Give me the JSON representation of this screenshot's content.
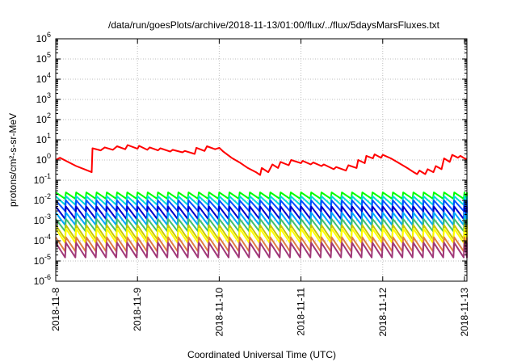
{
  "chart_data": {
    "type": "line",
    "title": "/data/run/goesPlots/archive/2018-11-13/01:00/flux/../flux/5daysMarsFluxes.txt",
    "xlabel": "Coordinated Universal Time (UTC)",
    "ylabel": "protons/cm²-s-sr-MeV",
    "yscale": "log",
    "ylim_exp": [
      -6,
      6
    ],
    "y_tick_exponents": [
      -6,
      -5,
      -4,
      -3,
      -2,
      -1,
      0,
      1,
      2,
      3,
      4,
      5,
      6
    ],
    "y_tick_base": "10",
    "x_range_days": [
      0,
      5.03
    ],
    "x_tick_labels": [
      "2018-11-8",
      "2018-11-9",
      "2018-11-10",
      "2018-11-11",
      "2018-11-12",
      "2018-11-13"
    ],
    "x_tick_days": [
      0,
      1,
      2,
      3,
      4,
      5
    ],
    "grid": true,
    "sawtooth_period_days": 0.125,
    "series": [
      {
        "color": "#ff0000",
        "values": [
          [
            0,
            1.0
          ],
          [
            0.05,
            1.3
          ],
          [
            0.15,
            0.8
          ],
          [
            0.25,
            0.5
          ],
          [
            0.35,
            0.35
          ],
          [
            0.44,
            0.25
          ],
          [
            0.45,
            3.8
          ],
          [
            0.55,
            3.0
          ],
          [
            0.6,
            4.2
          ],
          [
            0.7,
            3.2
          ],
          [
            0.75,
            4.8
          ],
          [
            0.85,
            3.4
          ],
          [
            0.88,
            5.5
          ],
          [
            1.0,
            3.6
          ],
          [
            1.02,
            5.0
          ],
          [
            1.12,
            3.2
          ],
          [
            1.15,
            4.2
          ],
          [
            1.25,
            3.0
          ],
          [
            1.28,
            3.8
          ],
          [
            1.4,
            2.6
          ],
          [
            1.43,
            3.2
          ],
          [
            1.55,
            2.4
          ],
          [
            1.58,
            2.8
          ],
          [
            1.7,
            2.0
          ],
          [
            1.72,
            4.0
          ],
          [
            1.82,
            2.8
          ],
          [
            1.85,
            4.8
          ],
          [
            1.95,
            3.4
          ],
          [
            2.0,
            4.0
          ],
          [
            2.05,
            2.6
          ],
          [
            2.15,
            1.3
          ],
          [
            2.25,
            0.75
          ],
          [
            2.35,
            0.4
          ],
          [
            2.45,
            0.25
          ],
          [
            2.5,
            0.18
          ],
          [
            2.52,
            0.4
          ],
          [
            2.6,
            0.25
          ],
          [
            2.65,
            0.6
          ],
          [
            2.72,
            0.4
          ],
          [
            2.75,
            0.8
          ],
          [
            2.85,
            0.55
          ],
          [
            2.88,
            1.0
          ],
          [
            3.0,
            0.7
          ],
          [
            3.02,
            0.9
          ],
          [
            3.12,
            0.6
          ],
          [
            3.15,
            0.75
          ],
          [
            3.25,
            0.5
          ],
          [
            3.28,
            0.6
          ],
          [
            3.4,
            0.35
          ],
          [
            3.43,
            0.45
          ],
          [
            3.55,
            0.3
          ],
          [
            3.58,
            0.55
          ],
          [
            3.68,
            0.4
          ],
          [
            3.7,
            1.0
          ],
          [
            3.78,
            0.7
          ],
          [
            3.8,
            1.6
          ],
          [
            3.88,
            1.2
          ],
          [
            3.9,
            1.9
          ],
          [
            3.98,
            1.3
          ],
          [
            4.0,
            1.8
          ],
          [
            4.1,
            1.2
          ],
          [
            4.2,
            0.7
          ],
          [
            4.3,
            0.4
          ],
          [
            4.38,
            0.25
          ],
          [
            4.42,
            0.2
          ],
          [
            4.45,
            0.3
          ],
          [
            4.52,
            0.2
          ],
          [
            4.55,
            0.35
          ],
          [
            4.62,
            0.25
          ],
          [
            4.65,
            0.5
          ],
          [
            4.72,
            0.35
          ],
          [
            4.75,
            1.2
          ],
          [
            4.82,
            0.8
          ],
          [
            4.85,
            1.8
          ],
          [
            4.92,
            1.3
          ],
          [
            4.95,
            1.6
          ],
          [
            5.0,
            1.2
          ],
          [
            5.03,
            1.1
          ]
        ]
      },
      {
        "color": "#00ff00",
        "top": 0.025,
        "bottom": 0.012
      },
      {
        "color": "#00d8d8",
        "top": 0.016,
        "bottom": 0.006
      },
      {
        "color": "#0050ff",
        "top": 0.01,
        "bottom": 0.003
      },
      {
        "color": "#0000cc",
        "top": 0.005,
        "bottom": 0.0012
      },
      {
        "color": "#00a8ff",
        "top": 0.0025,
        "bottom": 0.0006
      },
      {
        "color": "#40c070",
        "top": 0.0012,
        "bottom": 0.0003
      },
      {
        "color": "#c8c800",
        "top": 0.0006,
        "bottom": 0.00012
      },
      {
        "color": "#ffff00",
        "top": 0.0004,
        "bottom": 8e-05
      },
      {
        "color": "#e08040",
        "top": 0.00015,
        "bottom": 3e-05
      },
      {
        "color": "#a03878",
        "top": 8e-05,
        "bottom": 1.5e-05
      }
    ]
  }
}
